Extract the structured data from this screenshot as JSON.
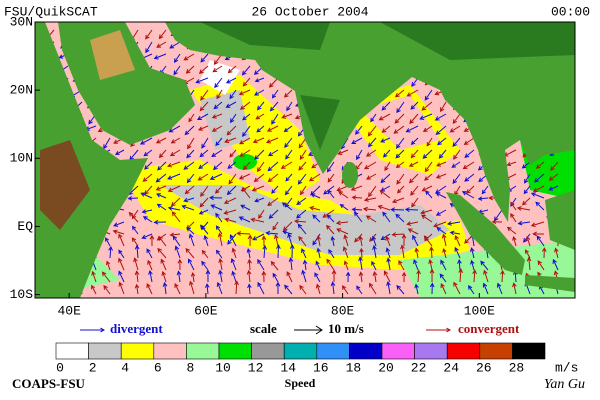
{
  "header": {
    "left": "FSU/QuikSCAT",
    "center": "26 October 2004",
    "right": "00:00"
  },
  "map": {
    "lon_range": [
      35,
      114
    ],
    "lat_range": [
      -10.5,
      30
    ],
    "lon_ticks": [
      {
        "value": 40,
        "label": "40E"
      },
      {
        "value": 60,
        "label": "60E"
      },
      {
        "value": 80,
        "label": "80E"
      },
      {
        "value": 100,
        "label": "100E"
      }
    ],
    "lat_ticks": [
      {
        "value": 30,
        "label": "30N"
      },
      {
        "value": 20,
        "label": "20N"
      },
      {
        "value": 10,
        "label": "10N"
      },
      {
        "value": 0,
        "label": "EQ"
      },
      {
        "value": -10,
        "label": "10S"
      }
    ]
  },
  "legend": {
    "divergent": "divergent",
    "scale": "scale",
    "scale_value": "10 m/s",
    "convergent": "convergent",
    "divergent_color": "#1010d0",
    "convergent_color": "#b01010"
  },
  "colorbar": {
    "ticks": [
      0,
      2,
      4,
      6,
      8,
      10,
      12,
      14,
      16,
      18,
      20,
      22,
      24,
      26,
      28
    ],
    "colors": [
      "#ffffff",
      "#c8c8c8",
      "#ffff00",
      "#ffc0c0",
      "#98f898",
      "#00e000",
      "#989898",
      "#00b0b0",
      "#3090f8",
      "#0000c8",
      "#f860f8",
      "#a878f0",
      "#f80000",
      "#c84000",
      "#000000"
    ],
    "unit": "m/s",
    "label": "Speed"
  },
  "footer": {
    "left": "COAPS-FSU",
    "right": "Yan Gu"
  }
}
